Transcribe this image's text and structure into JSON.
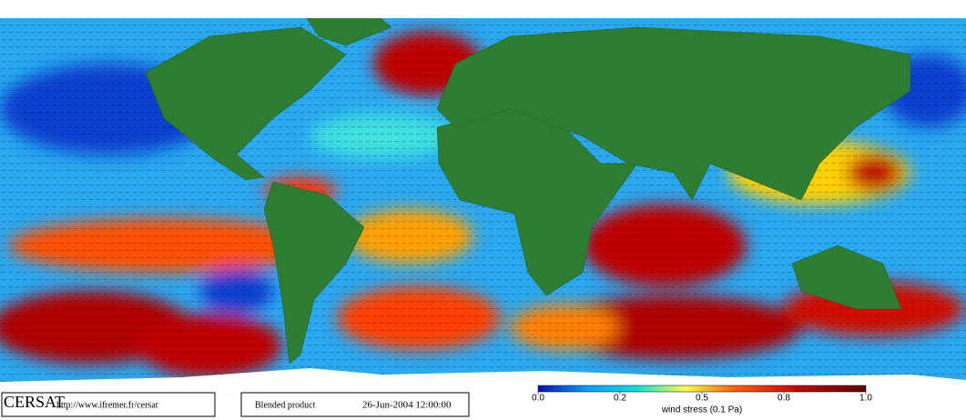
{
  "footer": {
    "logo": "CERSAT",
    "url": "http://www.ifremer.fr/cersat",
    "product": "Blended product",
    "date": "26-Jun-2004 12:00:00"
  },
  "colorbar": {
    "ticks": [
      {
        "value": 0,
        "label": "0.0"
      },
      {
        "value": 0.2,
        "label": "0.2"
      },
      {
        "value": 0.5,
        "label": "0.5"
      },
      {
        "value": 0.8,
        "label": "0.8"
      },
      {
        "value": 1,
        "label": "1.0"
      }
    ],
    "label": "wind stress (0.1 Pa)"
  }
}
